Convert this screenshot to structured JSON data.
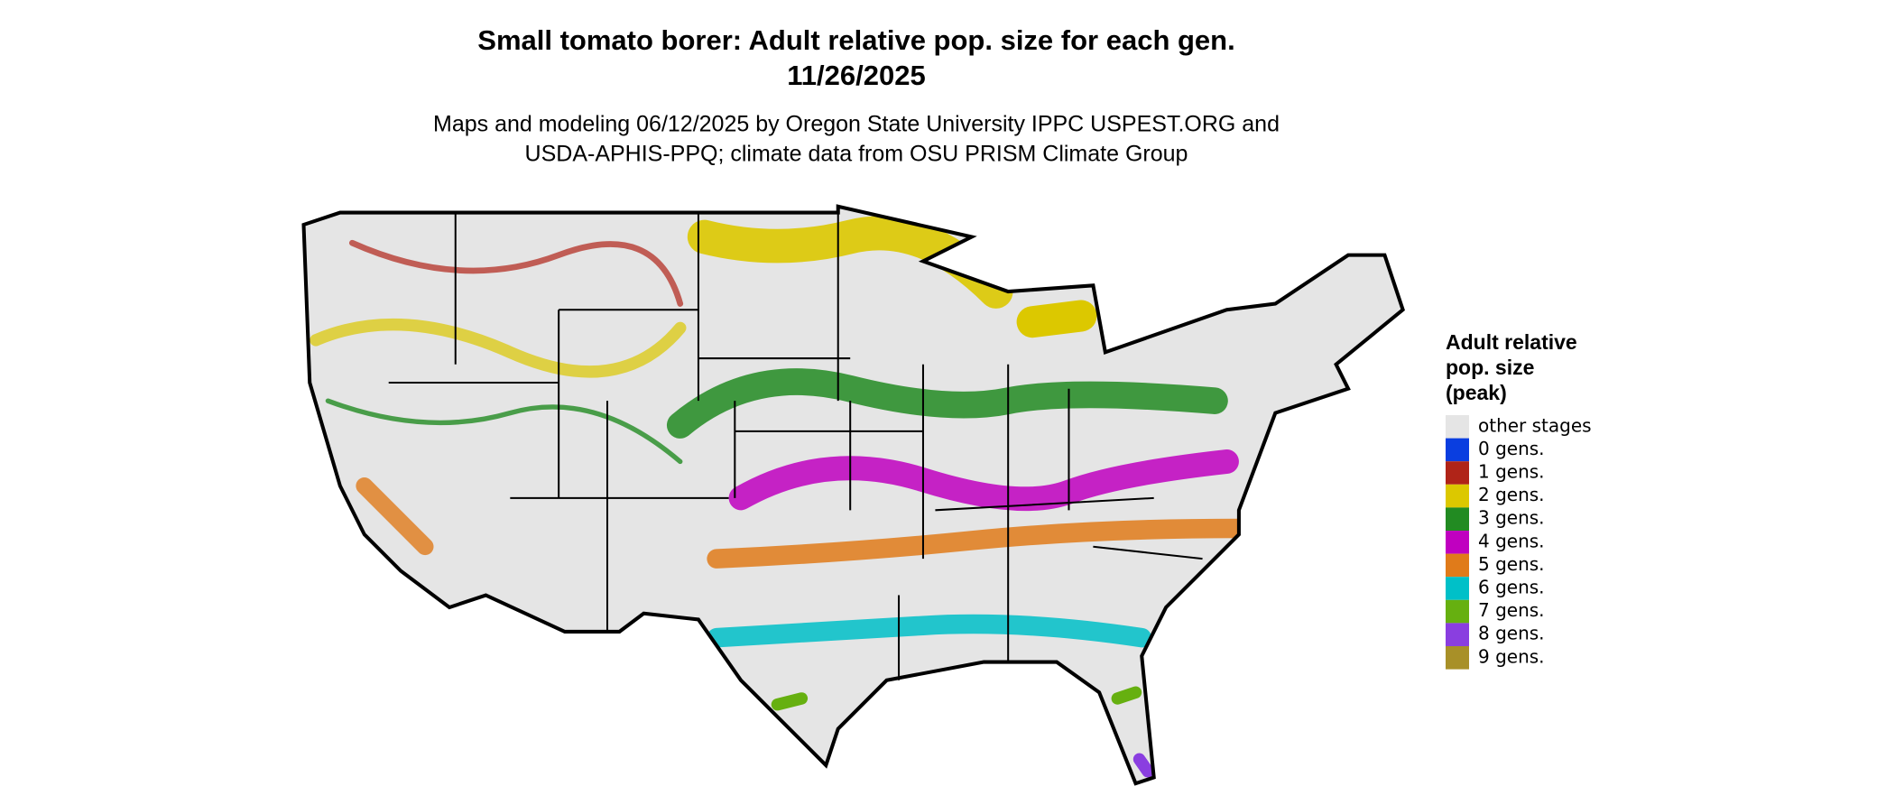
{
  "header": {
    "title": "Small tomato borer: Adult relative pop. size for each gen.",
    "date": "11/26/2025",
    "subtitle": [
      "Maps and modeling 06/12/2025 by Oregon State University IPPC USPEST.ORG and",
      "USDA-APHIS-PPQ; climate data from OSU PRISM Climate Group"
    ]
  },
  "legend": {
    "title": [
      "Adult relative",
      "pop. size",
      "(peak)"
    ],
    "items": [
      {
        "label": "other stages",
        "color": "#e5e5e5"
      },
      {
        "label": "0 gens.",
        "color": "#0a3ee0"
      },
      {
        "label": "1 gens.",
        "color": "#b02418"
      },
      {
        "label": "2 gens.",
        "color": "#dcc800"
      },
      {
        "label": "3 gens.",
        "color": "#228b22"
      },
      {
        "label": "4 gens.",
        "color": "#c000c0"
      },
      {
        "label": "5 gens.",
        "color": "#e07b1a"
      },
      {
        "label": "6 gens.",
        "color": "#00c0c8"
      },
      {
        "label": "7 gens.",
        "color": "#66b010"
      },
      {
        "label": "8 gens.",
        "color": "#8a3ee0"
      },
      {
        "label": "9 gens.",
        "color": "#a89028"
      }
    ]
  }
}
